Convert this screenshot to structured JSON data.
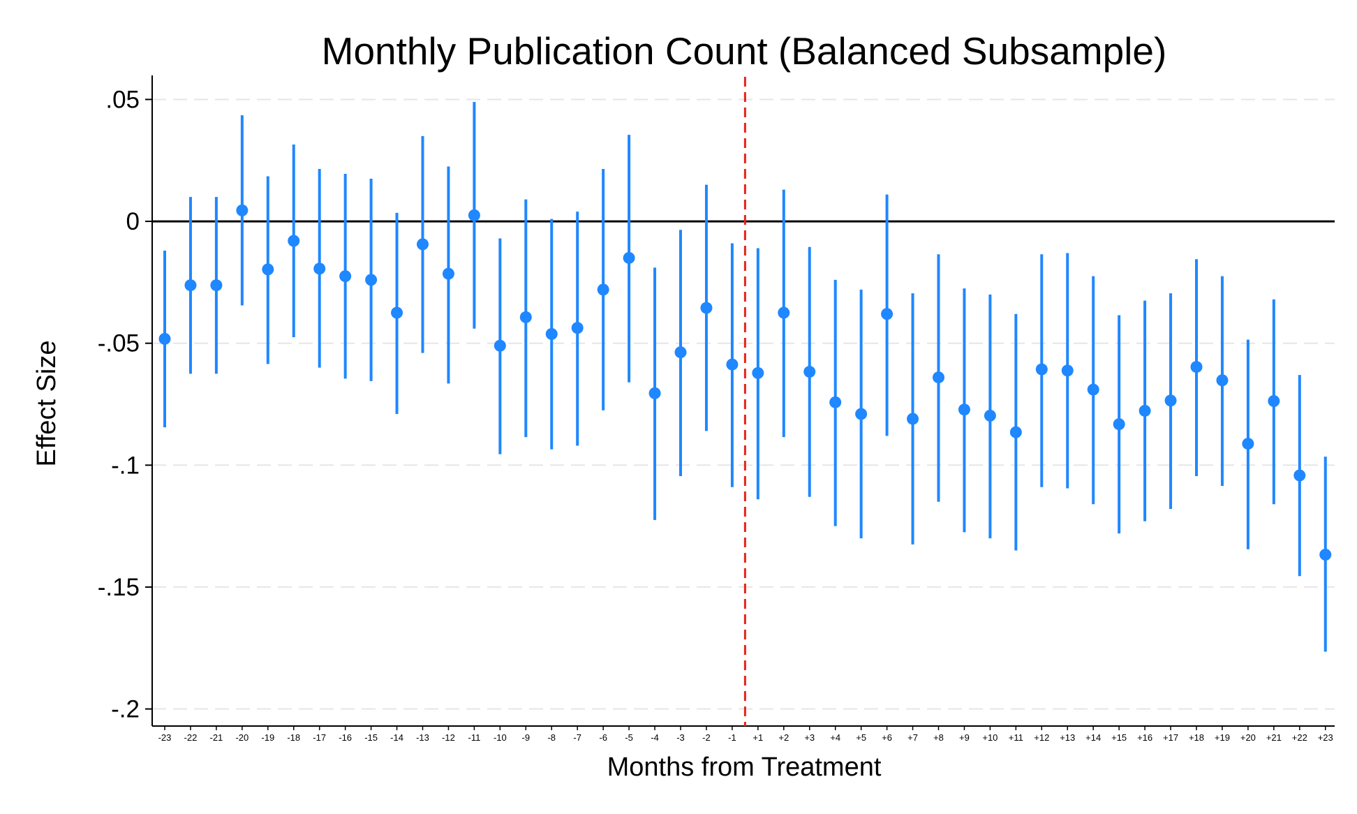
{
  "chart_data": {
    "type": "scatter",
    "title": "Monthly Publication Count (Balanced Subsample)",
    "xlabel": "Months from Treatment",
    "ylabel": "Effect Size",
    "ylim": [
      -0.207,
      0.057
    ],
    "yticks": [
      0.05,
      0,
      -0.05,
      -0.1,
      -0.15,
      -0.2
    ],
    "ytick_labels": [
      ".05",
      "0",
      "-.05",
      "-.1",
      "-.15",
      "-.2"
    ],
    "categories": [
      "-23",
      "-22",
      "-21",
      "-20",
      "-19",
      "-18",
      "-17",
      "-16",
      "-15",
      "-14",
      "-13",
      "-12",
      "-11",
      "-10",
      "-9",
      "-8",
      "-7",
      "-6",
      "-5",
      "-4",
      "-3",
      "-2",
      "-1",
      "+1",
      "+2",
      "+3",
      "+4",
      "+5",
      "+6",
      "+7",
      "+8",
      "+9",
      "+10",
      "+11",
      "+12",
      "+13",
      "+14",
      "+15",
      "+16",
      "+17",
      "+18",
      "+19",
      "+20",
      "+21",
      "+22",
      "+23"
    ],
    "series": [
      {
        "estimate": [
          -0.0482,
          -0.0262,
          -0.0262,
          0.0045,
          -0.0197,
          -0.008,
          -0.0194,
          -0.0225,
          -0.024,
          -0.0375,
          -0.0094,
          -0.0215,
          0.0025,
          -0.051,
          -0.0393,
          -0.0462,
          -0.0437,
          -0.028,
          -0.015,
          -0.0705,
          -0.0537,
          -0.0355,
          -0.0587,
          -0.0622,
          -0.0375,
          -0.0617,
          -0.0742,
          -0.079,
          -0.038,
          -0.081,
          -0.064,
          -0.0772,
          -0.0797,
          -0.0865,
          -0.0607,
          -0.0612,
          -0.069,
          -0.0832,
          -0.0777,
          -0.0735,
          -0.0597,
          -0.0652,
          -0.0912,
          -0.0737,
          -0.1042,
          -0.1367
        ],
        "ci_low": [
          -0.0845,
          -0.0625,
          -0.0625,
          -0.0345,
          -0.0585,
          -0.0475,
          -0.06,
          -0.0645,
          -0.0655,
          -0.079,
          -0.054,
          -0.0665,
          -0.044,
          -0.0955,
          -0.0885,
          -0.0935,
          -0.092,
          -0.0775,
          -0.066,
          -0.1225,
          -0.1045,
          -0.086,
          -0.109,
          -0.114,
          -0.0885,
          -0.113,
          -0.125,
          -0.13,
          -0.088,
          -0.1325,
          -0.115,
          -0.1275,
          -0.13,
          -0.135,
          -0.109,
          -0.1095,
          -0.116,
          -0.128,
          -0.123,
          -0.118,
          -0.1045,
          -0.1085,
          -0.1345,
          -0.116,
          -0.1455,
          -0.1765
        ],
        "ci_high": [
          -0.012,
          0.01,
          0.01,
          0.0435,
          0.0185,
          0.0315,
          0.0215,
          0.0195,
          0.0175,
          0.0035,
          0.035,
          0.0225,
          0.049,
          -0.007,
          0.009,
          0.001,
          0.004,
          0.0215,
          0.0355,
          -0.019,
          -0.0035,
          0.015,
          -0.009,
          -0.011,
          0.013,
          -0.0105,
          -0.024,
          -0.028,
          0.011,
          -0.0295,
          -0.0135,
          -0.0275,
          -0.03,
          -0.038,
          -0.0135,
          -0.013,
          -0.0225,
          -0.0385,
          -0.0325,
          -0.0295,
          -0.0155,
          -0.0225,
          -0.0485,
          -0.032,
          -0.063,
          -0.0965
        ]
      }
    ],
    "reference_lines": {
      "horizontal_zero": 0,
      "treatment_after_category": "-1"
    },
    "grid": "horizontal dashed",
    "legend": "none",
    "colors": {
      "marker": "#1f87ff",
      "treatment_line": "#e8221a",
      "zero_line": "#000000",
      "gridline": "#e6e6e6",
      "axis": "#000000"
    }
  }
}
